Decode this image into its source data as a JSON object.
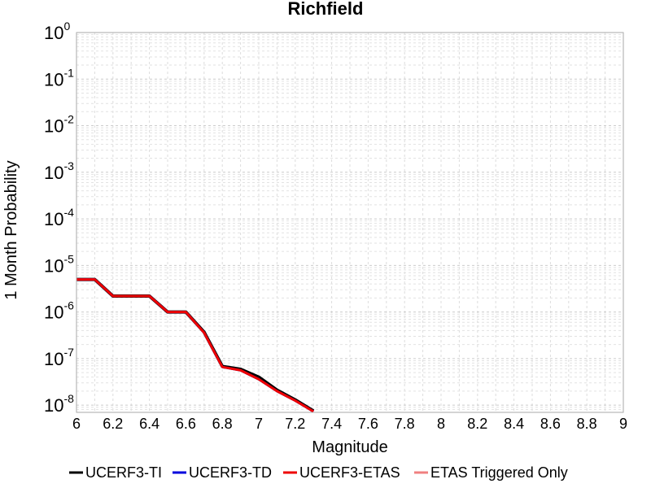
{
  "chart_data": {
    "type": "line",
    "title": "Richfield",
    "xlabel": "Magnitude",
    "ylabel": "1 Month Probability",
    "xlim": [
      6,
      9
    ],
    "ylim": [
      7e-09,
      1
    ],
    "y_scale": "log",
    "grid": true,
    "legend_placement": "bottom",
    "x_ticks": [
      "6",
      "6.2",
      "6.4",
      "6.6",
      "6.8",
      "7",
      "7.2",
      "7.4",
      "7.6",
      "7.8",
      "8",
      "8.2",
      "8.4",
      "8.6",
      "8.8",
      "9"
    ],
    "y_ticks": [
      {
        "base": "10",
        "exp": "0"
      },
      {
        "base": "10",
        "exp": "-1"
      },
      {
        "base": "10",
        "exp": "-2"
      },
      {
        "base": "10",
        "exp": "-3"
      },
      {
        "base": "10",
        "exp": "-4"
      },
      {
        "base": "10",
        "exp": "-5"
      },
      {
        "base": "10",
        "exp": "-6"
      },
      {
        "base": "10",
        "exp": "-7"
      },
      {
        "base": "10",
        "exp": "-8"
      }
    ],
    "series": [
      {
        "name": "UCERF3-TI",
        "color": "#000000",
        "x": [
          6.0,
          6.1,
          6.2,
          6.3,
          6.4,
          6.5,
          6.6,
          6.7,
          6.8,
          6.9,
          7.0,
          7.1,
          7.2,
          7.3
        ],
        "values": [
          5e-06,
          5e-06,
          2.2e-06,
          2.2e-06,
          2.2e-06,
          1e-06,
          1e-06,
          3.7e-07,
          6.8e-08,
          5.9e-08,
          4e-08,
          2.1e-08,
          1.3e-08,
          7.5e-09
        ]
      },
      {
        "name": "UCERF3-TD",
        "color": "#0000dd",
        "x": [
          6.0,
          6.1,
          6.2,
          6.3,
          6.4,
          6.5,
          6.6,
          6.7,
          6.8,
          6.9,
          7.0,
          7.1,
          7.2,
          7.3
        ],
        "values": [
          5e-06,
          5e-06,
          2.2e-06,
          2.2e-06,
          2.2e-06,
          1e-06,
          1e-06,
          3.6e-07,
          6.6e-08,
          5.6e-08,
          3.6e-08,
          2e-08,
          1.25e-08,
          7.3e-09
        ]
      },
      {
        "name": "UCERF3-ETAS",
        "color": "#ee0000",
        "x": [
          6.0,
          6.1,
          6.2,
          6.3,
          6.4,
          6.5,
          6.6,
          6.7,
          6.8,
          6.9,
          7.0,
          7.1,
          7.2,
          7.3
        ],
        "values": [
          5e-06,
          5e-06,
          2.2e-06,
          2.2e-06,
          2.2e-06,
          1e-06,
          1e-06,
          3.6e-07,
          6.6e-08,
          5.6e-08,
          3.6e-08,
          2e-08,
          1.25e-08,
          7.3e-09
        ]
      },
      {
        "name": "ETAS Triggered Only",
        "color": "#f08080",
        "x": [],
        "values": []
      }
    ]
  }
}
